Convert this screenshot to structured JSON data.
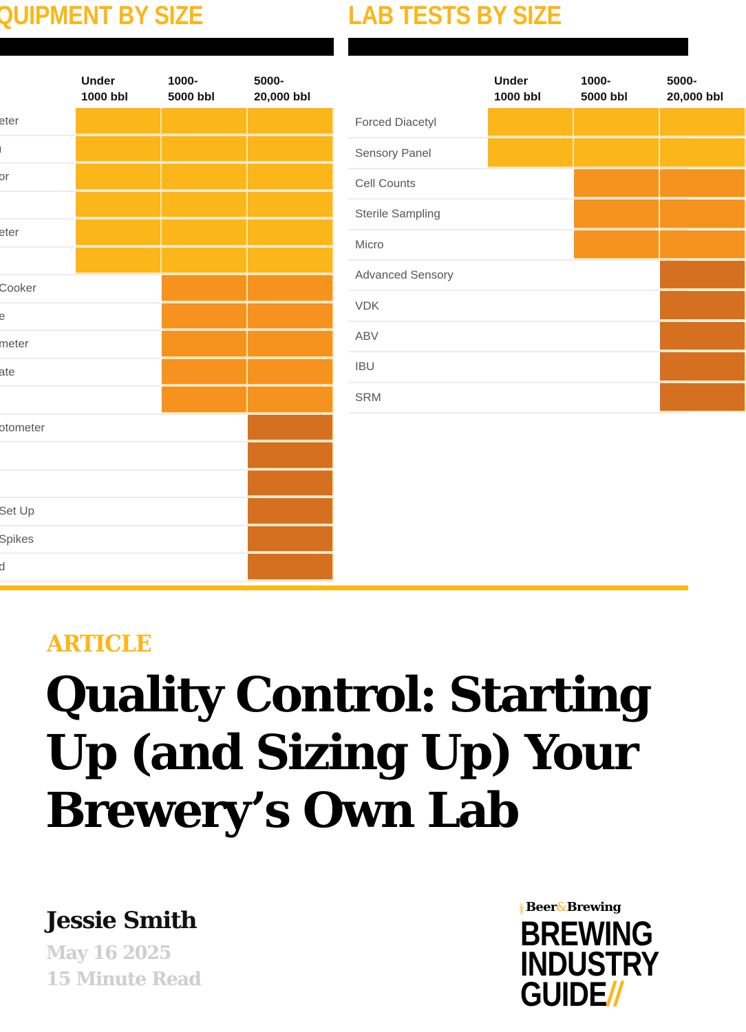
{
  "equipment_panel": {
    "title": "QUIPMENT BY SIZE",
    "columns": [
      {
        "line1": "Under",
        "line2": "1000 bbl"
      },
      {
        "line1": "1000-",
        "line2": "5000 bbl"
      },
      {
        "line1": "5000-",
        "line2": "20,000 bbl"
      }
    ],
    "rows": [
      {
        "label": "eter",
        "tier": 1
      },
      {
        "label": "ı",
        "tier": 1
      },
      {
        "label": "or",
        "tier": 1
      },
      {
        "label": "",
        "tier": 1
      },
      {
        "label": "eter",
        "tier": 1
      },
      {
        "label": "",
        "tier": 1
      },
      {
        "label": "Cooker",
        "tier": 2
      },
      {
        "label": "e",
        "tier": 2
      },
      {
        "label": "meter",
        "tier": 2
      },
      {
        "label": "ate",
        "tier": 2
      },
      {
        "label": "",
        "tier": 2
      },
      {
        "label": "otometer",
        "tier": 3
      },
      {
        "label": "",
        "tier": 3
      },
      {
        "label": "",
        "tier": 3
      },
      {
        "label": " Set Up",
        "tier": 3
      },
      {
        "label": "Spikes",
        "tier": 3
      },
      {
        "label": "d",
        "tier": 3
      }
    ]
  },
  "lab_panel": {
    "title": "LAB TESTS BY SIZE",
    "columns": [
      {
        "line1": "Under",
        "line2": "1000 bbl"
      },
      {
        "line1": "1000-",
        "line2": "5000 bbl"
      },
      {
        "line1": "5000-",
        "line2": "20,000 bbl"
      }
    ],
    "rows": [
      {
        "label": "Forced Diacetyl",
        "tier": 1
      },
      {
        "label": "Sensory Panel",
        "tier": 1
      },
      {
        "label": "Cell Counts",
        "tier": 2
      },
      {
        "label": "Sterile Sampling",
        "tier": 2
      },
      {
        "label": "Micro",
        "tier": 2
      },
      {
        "label": "Advanced Sensory",
        "tier": 3
      },
      {
        "label": "VDK",
        "tier": 3
      },
      {
        "label": "ABV",
        "tier": 3
      },
      {
        "label": "IBU",
        "tier": 3
      },
      {
        "label": "SRM",
        "tier": 3
      }
    ]
  },
  "colors": {
    "tier1": "#fbb619",
    "tier2": "#f6921e",
    "tier3": "#d4701f",
    "accent": "#fdb813"
  },
  "article": {
    "eyebrow": "ARTICLE",
    "headline_lines": [
      "Quality Control: Starting",
      "Up (and Sizing Up) Your",
      "Brewery’s Own Lab"
    ],
    "author": "Jessie Smith",
    "date": "May 16 2025",
    "read_time": "15 Minute Read"
  },
  "logo": {
    "craft": "CRAFT",
    "beer": "Beer",
    "amp": "&",
    "brewing": "Brewing",
    "line1": "BREWING",
    "line2": "INDUSTRY",
    "line3": "GUIDE",
    "slash": "//"
  }
}
